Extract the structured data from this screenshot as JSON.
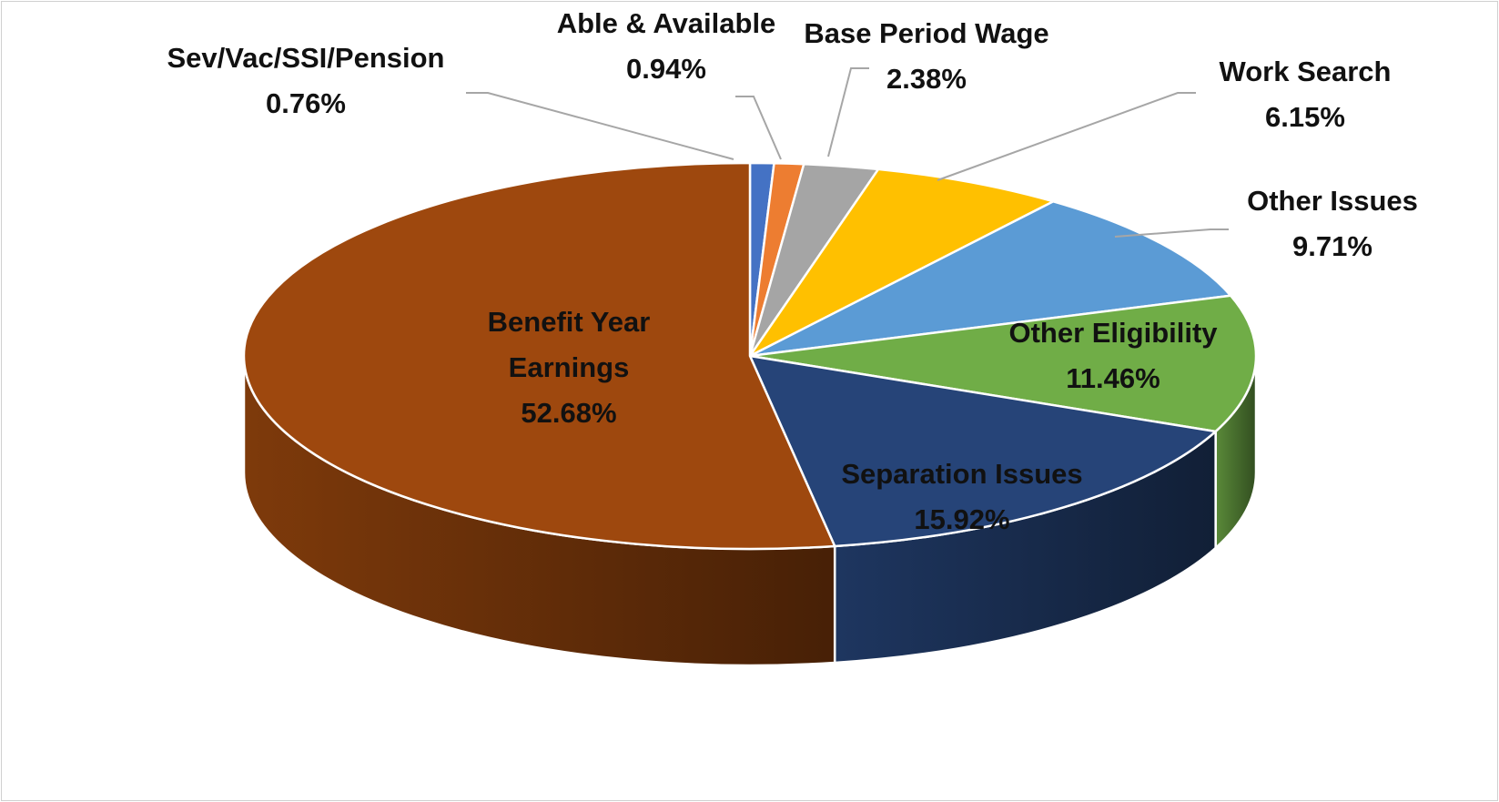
{
  "chart_data": {
    "type": "pie",
    "style": "3d",
    "title": "",
    "start_angle_deg": 0,
    "direction": "clockwise",
    "slices": [
      {
        "name": "Sev/Vac/SSI/Pension",
        "value": 0.76,
        "label": "0.76%",
        "color": "#4472C4"
      },
      {
        "name": "Able & Available",
        "value": 0.94,
        "label": "0.94%",
        "color": "#ED7D31"
      },
      {
        "name": "Base Period Wage",
        "value": 2.38,
        "label": "2.38%",
        "color": "#A5A5A5"
      },
      {
        "name": "Work Search",
        "value": 6.15,
        "label": "6.15%",
        "color": "#FFC000"
      },
      {
        "name": "Other Issues",
        "value": 9.71,
        "label": "9.71%",
        "color": "#5B9BD5"
      },
      {
        "name": "Other Eligibility",
        "value": 11.46,
        "label": "11.46%",
        "color": "#70AD47"
      },
      {
        "name": "Separation Issues",
        "value": 15.92,
        "label": "15.92%",
        "color": "#264478"
      },
      {
        "name": "Benefit Year Earnings",
        "value": 52.68,
        "label": "52.68%",
        "color": "#9E480E"
      }
    ]
  }
}
